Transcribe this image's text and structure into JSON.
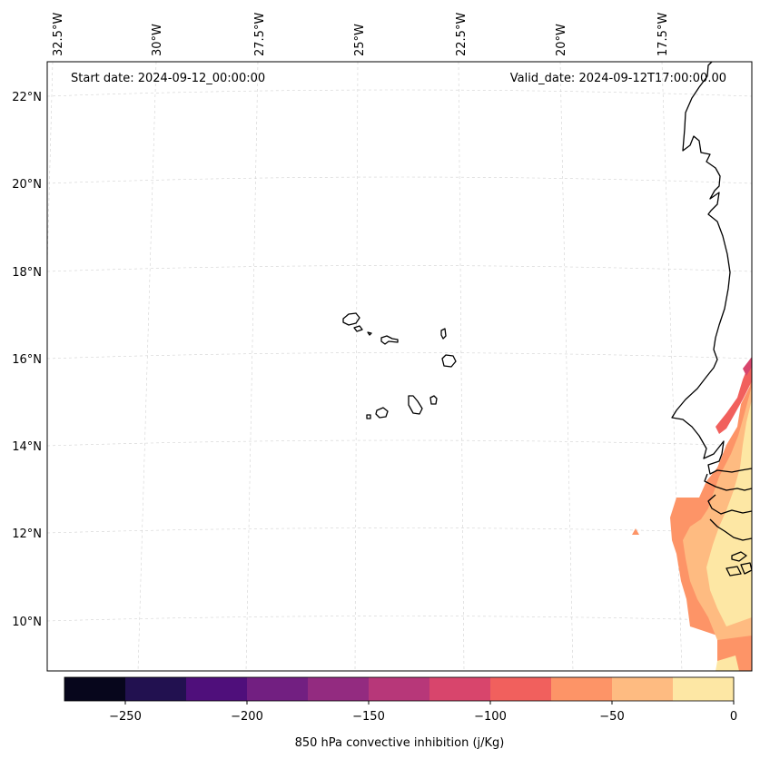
{
  "map": {
    "start_date_label": "Start date: 2024-09-12_00:00:00",
    "valid_date_label": "Valid_date: 2024-09-12T17:00:00.00",
    "lon_labels": [
      "32.5°W",
      "30°W",
      "27.5°W",
      "25°W",
      "22.5°W",
      "20°W",
      "17.5°W"
    ],
    "lat_labels": [
      "22°N",
      "20°N",
      "18°N",
      "16°N",
      "14°N",
      "12°N",
      "10°N"
    ]
  },
  "colorbar": {
    "title": "850 hPa convective inhibition (j/Kg)",
    "tick_labels": [
      "−250",
      "−200",
      "−150",
      "−100",
      "−50",
      "0"
    ],
    "levels": [
      -275,
      -250,
      -225,
      -200,
      -175,
      -150,
      -125,
      -100,
      -75,
      -50,
      -25,
      0
    ],
    "colors": [
      "#07061c",
      "#221150",
      "#4f0f7b",
      "#721f81",
      "#932b80",
      "#b73779",
      "#d8456c",
      "#f1605d",
      "#fd9467",
      "#febb81",
      "#fde7a4"
    ]
  }
}
